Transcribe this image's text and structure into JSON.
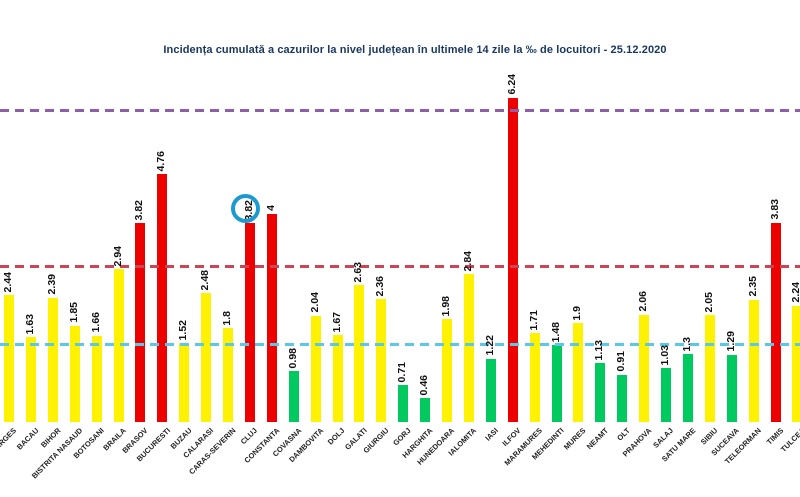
{
  "chart_data": {
    "type": "bar",
    "title": "Incidența cumulată a cazurilor la nivel județean în ultimele 14 zile la ‰ de locuitori - 25.12.2020",
    "title_color": "#17375E",
    "categories": [
      "ARGES",
      "BACAU",
      "BIHOR",
      "BISTRITA NASAUD",
      "BOTOSANI",
      "BRAILA",
      "BRASOV",
      "BUCURESTI",
      "BUZAU",
      "CALARASI",
      "CARAS-SEVERIN",
      "CLUJ",
      "CONSTANTA",
      "COVASNA",
      "DAMBOVITA",
      "DOLJ",
      "GALATI",
      "GIURGIU",
      "GORJ",
      "HARGHITA",
      "HUNEDOARA",
      "IALOMITA",
      "IASI",
      "ILFOV",
      "MARAMURES",
      "MEHEDINTI",
      "MURES",
      "NEAMT",
      "OLT",
      "PRAHOVA",
      "SALAJ",
      "SATU MARE",
      "SIBIU",
      "SUCEAVA",
      "TELEORMAN",
      "TIMIS",
      "TULCEA"
    ],
    "values": [
      2.44,
      1.63,
      2.39,
      1.85,
      1.66,
      2.94,
      3.82,
      4.76,
      1.52,
      2.48,
      1.8,
      3.82,
      4,
      0.98,
      2.04,
      1.67,
      2.63,
      2.36,
      0.71,
      0.46,
      1.98,
      2.84,
      1.22,
      6.24,
      1.71,
      1.48,
      1.9,
      1.13,
      0.91,
      2.06,
      1.03,
      1.3,
      2.05,
      1.29,
      2.35,
      3.83,
      2.24
    ],
    "value_labels": [
      "2.44",
      "1.63",
      "2.39",
      "1.85",
      "1.66",
      "2.94",
      "3.82",
      "4.76",
      "1.52",
      "2.48",
      "1.8",
      "3.82",
      "4",
      "0.98",
      "2.04",
      "1.67",
      "2.63",
      "2.36",
      "0.71",
      "0.46",
      "1.98",
      "2.84",
      "1.22",
      "6.24",
      "1.71",
      "1.48",
      "1.9",
      "1.13",
      "0.91",
      "2.06",
      "1.03",
      "1.3",
      "2.05",
      "1.29",
      "2.35",
      "3.83",
      "2.24"
    ],
    "bar_colors": {
      "low": "#00C95F",
      "mid": "#FFF200",
      "high": "#ED0000"
    },
    "color_rule": "value < 1.5 => low(green); 1.5 <= value <= 3 => mid(yellow); value > 3 => high(red)",
    "thresholds": [
      {
        "value": 1.5,
        "color": "#5BC8E8"
      },
      {
        "value": 3,
        "color": "#CC4455"
      },
      {
        "value": 6,
        "color": "#8E5FA8"
      }
    ],
    "highlight": {
      "category": "CLUJ",
      "shape": "circle",
      "color": "#1B9AD2"
    },
    "xlabel": "",
    "ylabel": "",
    "ylim": [
      0,
      7
    ],
    "grid": false,
    "legend": false
  }
}
